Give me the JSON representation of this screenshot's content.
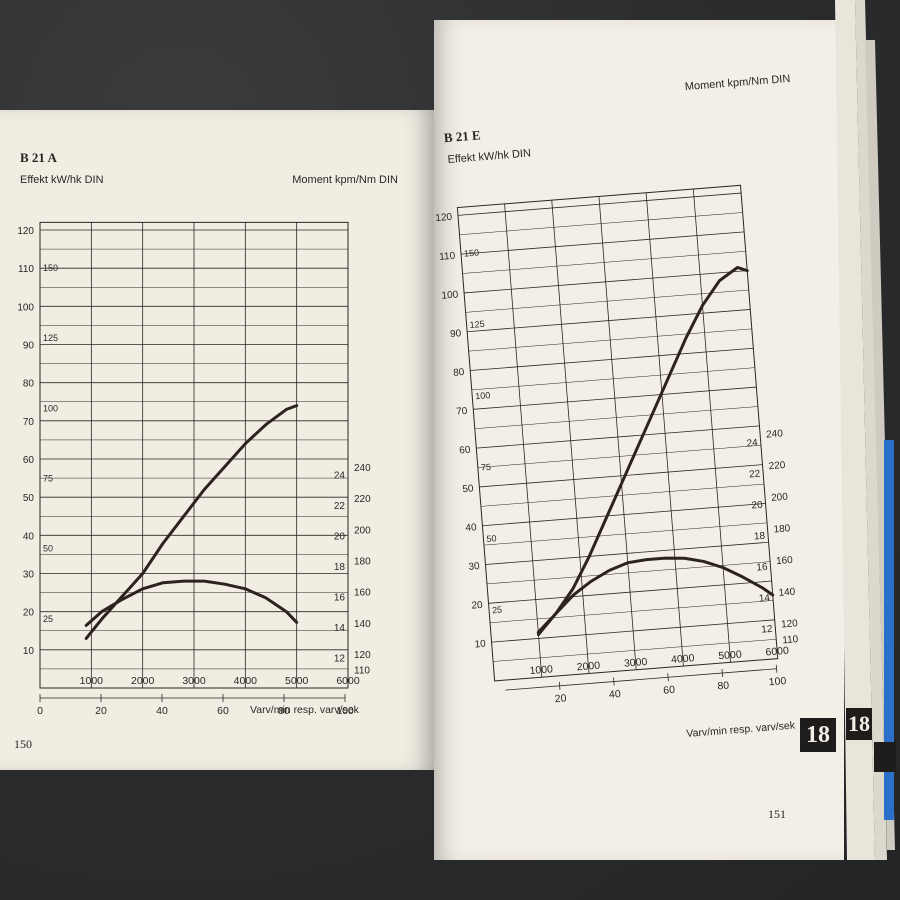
{
  "colors": {
    "paper": "#f1ede3",
    "ink": "#2a2622",
    "curve": "#2d231e",
    "tab_background": "#1e1d1c",
    "blue_edge": "#2a6fc9"
  },
  "left_page": {
    "title": "B 21 A",
    "left_axis_label": "Effekt kW/hk DIN",
    "right_axis_label": "Moment kpm/Nm DIN",
    "x_axis_label": "Varv/min resp. varv/sek",
    "page_number": "150"
  },
  "right_page": {
    "title": "B 21 E",
    "left_axis_label": "Effekt kW/hk DIN",
    "right_axis_label": "Moment kpm/Nm DIN",
    "x_axis_label": "Varv/min resp. varv/sek",
    "page_number": "151"
  },
  "section_tabs": [
    "18",
    "18"
  ],
  "chart_data": [
    {
      "type": "line",
      "title": "B 21 A",
      "xlabel": "Varv/min resp. varv/sek",
      "ylabel_left": "Effekt kW/hk DIN",
      "ylabel_right": "Moment kpm/Nm DIN",
      "x_ticks_rpm": [
        "1000",
        "2000",
        "3000",
        "4000",
        "5000",
        "6000"
      ],
      "x_ticks_rps": [
        "0",
        "20",
        "40",
        "60",
        "80",
        "100"
      ],
      "y_ticks_kw": [
        "10",
        "20",
        "30",
        "40",
        "50",
        "60",
        "70",
        "80",
        "90",
        "100",
        "110",
        "120"
      ],
      "y_ticks_hk": [
        "25",
        "50",
        "75",
        "100",
        "125",
        "150"
      ],
      "y_ticks_kpm": [
        "12",
        "14",
        "16",
        "18",
        "20",
        "22",
        "24"
      ],
      "y_ticks_nm": [
        "110",
        "120",
        "140",
        "160",
        "180",
        "200",
        "220",
        "240"
      ],
      "xlim_rpm": [
        0,
        6000
      ],
      "ylim_kw": [
        0,
        120
      ],
      "grid": true,
      "series": [
        {
          "axis": "left_kw",
          "x": [
            900,
            1200,
            1600,
            2000,
            2400,
            2800,
            3200,
            3600,
            4000,
            4400,
            4800,
            5000
          ],
          "y": [
            13,
            18,
            24,
            30,
            38,
            45,
            52,
            58,
            64,
            69,
            73,
            74
          ]
        },
        {
          "axis": "right_kpm",
          "x": [
            900,
            1200,
            1600,
            2000,
            2400,
            2800,
            3200,
            3600,
            4000,
            4400,
            4800,
            5000
          ],
          "y": [
            14.1,
            15.0,
            15.8,
            16.5,
            16.9,
            17.0,
            17.0,
            16.8,
            16.5,
            15.9,
            15.0,
            14.3
          ]
        }
      ]
    },
    {
      "type": "line",
      "title": "B 21 E",
      "xlabel": "Varv/min resp. varv/sek",
      "ylabel_left": "Effekt kW/hk DIN",
      "ylabel_right": "Moment kpm/Nm DIN",
      "x_ticks_rpm": [
        "1000",
        "2000",
        "3000",
        "4000",
        "5000",
        "6000"
      ],
      "x_ticks_rps": [
        "20",
        "40",
        "60",
        "80",
        "100"
      ],
      "y_ticks_kw": [
        "10",
        "20",
        "30",
        "40",
        "50",
        "60",
        "70",
        "80",
        "90",
        "100",
        "110",
        "120"
      ],
      "y_ticks_hk": [
        "25",
        "50",
        "75",
        "100",
        "125",
        "150"
      ],
      "y_ticks_kpm": [
        "12",
        "14",
        "16",
        "18",
        "20",
        "22",
        "24"
      ],
      "y_ticks_nm": [
        "110",
        "120",
        "140",
        "160",
        "180",
        "200",
        "220",
        "240"
      ],
      "xlim_rpm": [
        0,
        6000
      ],
      "ylim_kw": [
        0,
        120
      ],
      "grid": true,
      "series": [
        {
          "axis": "left_kw",
          "x": [
            1000,
            1400,
            1800,
            2200,
            2600,
            3000,
            3400,
            3800,
            4200,
            4600,
            5000,
            5400,
            5800,
            6000
          ],
          "y": [
            11,
            16,
            22,
            30,
            39,
            48,
            57,
            66,
            75,
            84,
            92,
            98,
            101,
            100
          ]
        },
        {
          "axis": "right_kpm",
          "x": [
            1000,
            1400,
            1800,
            2200,
            2600,
            3000,
            3400,
            3800,
            4200,
            4600,
            5000,
            5400,
            5800,
            6000
          ],
          "y": [
            12.9,
            14.0,
            15.1,
            15.9,
            16.5,
            16.9,
            17.0,
            17.0,
            16.9,
            16.6,
            16.1,
            15.4,
            14.6,
            14.1
          ]
        }
      ]
    }
  ]
}
